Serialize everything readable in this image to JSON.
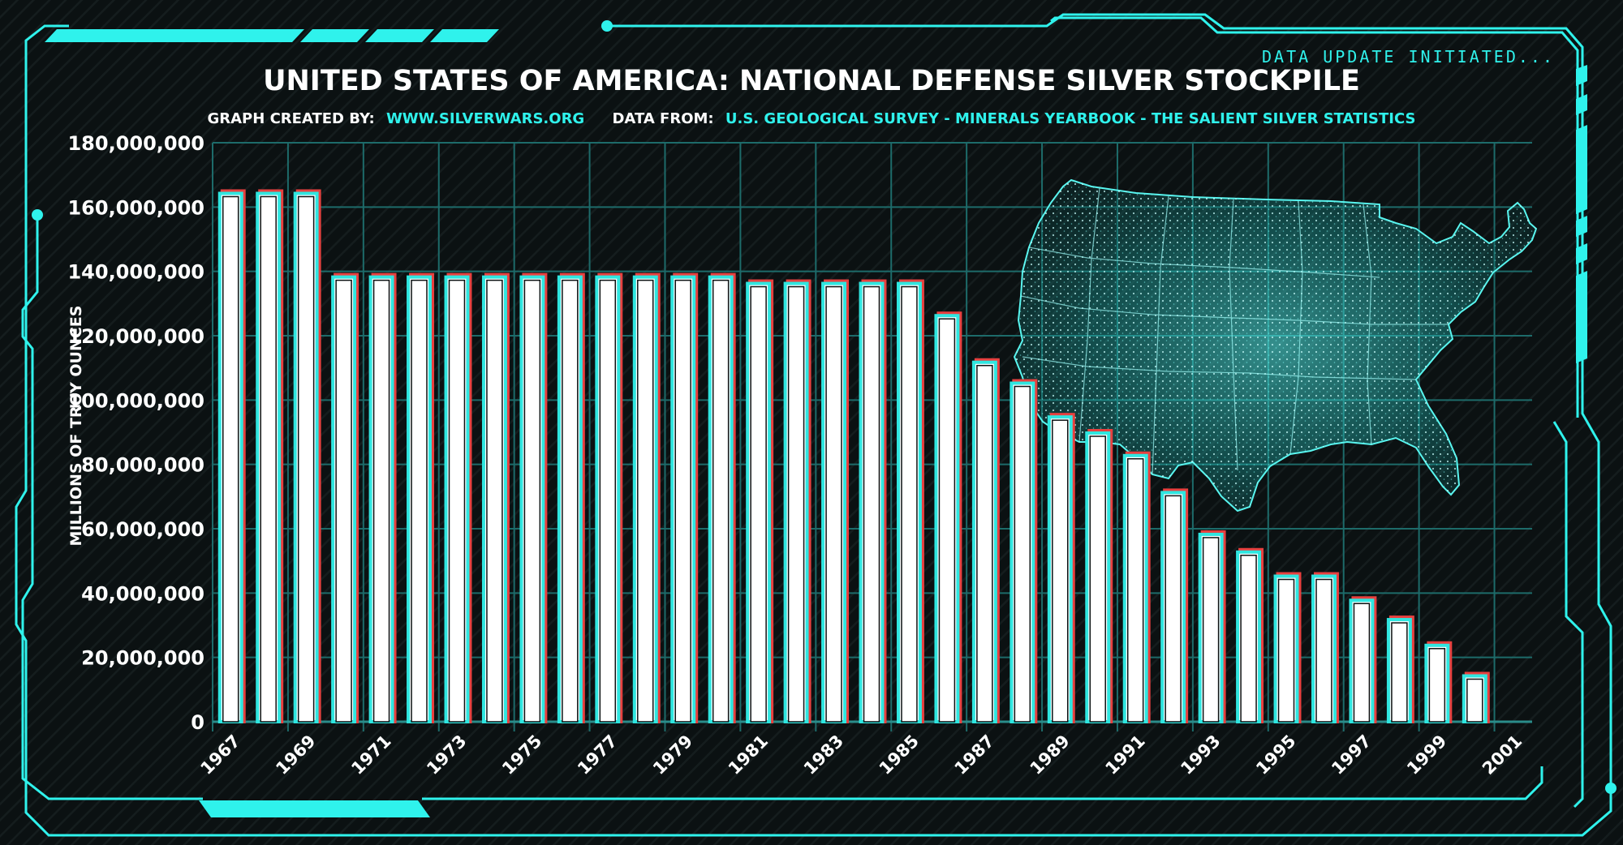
{
  "colors": {
    "background": "#0b1112",
    "accent": "#2ff2ec",
    "grid": "#1d6b6a",
    "bar_fill": "#ffffff",
    "bar_inner_outline": "#2fe6e0",
    "bar_outer_outline": "#e8403f"
  },
  "header": {
    "title": "UNITED STATES OF AMERICA: NATIONAL DEFENSE SILVER STOCKPILE",
    "credit_label": "GRAPH CREATED BY:",
    "credit_value": "WWW.SILVERWARS.ORG",
    "source_label": "DATA FROM:",
    "source_value": "U.S. GEOLOGICAL SURVEY - MINERALS YEARBOOK - THE SALIENT SILVER STATISTICS",
    "status_text": "DATA UPDATE INITIATED..."
  },
  "map": {
    "icon": "us-map-icon"
  },
  "chart_data": {
    "type": "bar",
    "title": "UNITED STATES OF AMERICA: NATIONAL DEFENSE SILVER STOCKPILE",
    "xlabel": "",
    "ylabel": "MILLIONS OF TROY OUNCES",
    "ylim": [
      0,
      180000000
    ],
    "yticks": [
      0,
      20000000,
      40000000,
      60000000,
      80000000,
      100000000,
      120000000,
      140000000,
      160000000,
      180000000
    ],
    "ytick_labels": [
      "0",
      "20,000,000",
      "40,000,000",
      "60,000,000",
      "80,000,000",
      "100,000,000",
      "120,000,000",
      "140,000,000",
      "160,000,000",
      "180,000,000"
    ],
    "categories": [
      "1967",
      "1968",
      "1969",
      "1970",
      "1971",
      "1972",
      "1973",
      "1974",
      "1975",
      "1976",
      "1977",
      "1978",
      "1979",
      "1980",
      "1981",
      "1982",
      "1983",
      "1984",
      "1985",
      "1986",
      "1987",
      "1988",
      "1989",
      "1990",
      "1991",
      "1992",
      "1993",
      "1994",
      "1995",
      "1996",
      "1997",
      "1998",
      "1999",
      "2000",
      "2001"
    ],
    "xtick_labels": [
      "1967",
      "1969",
      "1971",
      "1973",
      "1975",
      "1977",
      "1979",
      "1981",
      "1983",
      "1985",
      "1987",
      "1989",
      "1991",
      "1993",
      "1995",
      "1997",
      "1999",
      "2001"
    ],
    "values": [
      164500000,
      164500000,
      164500000,
      138500000,
      138500000,
      138500000,
      138500000,
      138500000,
      138500000,
      138500000,
      138500000,
      138500000,
      138500000,
      138500000,
      136500000,
      136500000,
      136500000,
      136500000,
      136500000,
      126500000,
      112000000,
      105500000,
      95000000,
      90000000,
      83000000,
      71500000,
      58500000,
      53000000,
      45500000,
      45500000,
      38000000,
      32000000,
      24000000,
      14500000,
      0
    ],
    "grid": true,
    "legend": "none"
  }
}
